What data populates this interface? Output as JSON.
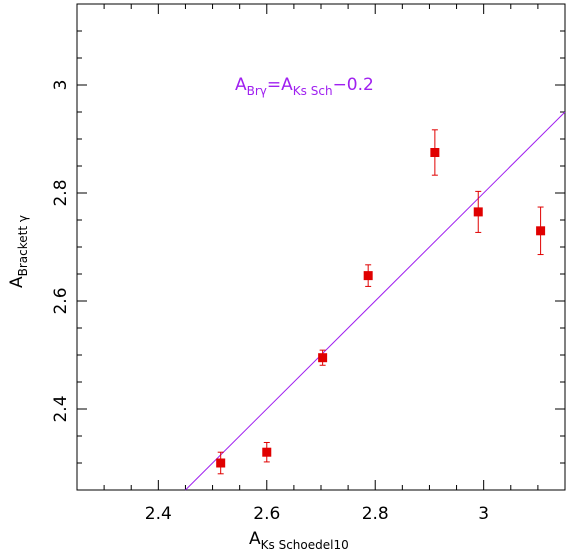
{
  "chart_data": {
    "type": "scatter",
    "xlabel": {
      "main": "A",
      "sub": "Ks Schoedel10"
    },
    "ylabel": {
      "main": "A",
      "sub": "Brackett γ"
    },
    "xlim": [
      2.25,
      3.15
    ],
    "ylim": [
      2.25,
      3.15
    ],
    "xticks": [
      2.4,
      2.6,
      2.8,
      3.0
    ],
    "xtick_labels": [
      "2.4",
      "2.6",
      "2.8",
      "3"
    ],
    "yticks": [
      2.4,
      2.6,
      2.8,
      3.0
    ],
    "ytick_labels": [
      "2.4",
      "2.6",
      "2.8",
      "3"
    ],
    "grid": false,
    "series": [
      {
        "marker": "square",
        "color": "#e00000",
        "points": [
          {
            "x": 2.515,
            "y": 2.3,
            "err": 0.02
          },
          {
            "x": 2.6,
            "y": 2.32,
            "err": 0.018
          },
          {
            "x": 2.703,
            "y": 2.495,
            "err": 0.014
          },
          {
            "x": 2.787,
            "y": 2.647,
            "err": 0.02
          },
          {
            "x": 2.91,
            "y": 2.875,
            "err": 0.042
          },
          {
            "x": 2.99,
            "y": 2.765,
            "err": 0.038
          },
          {
            "x": 3.105,
            "y": 2.73,
            "err": 0.044
          }
        ]
      }
    ],
    "fit_line": {
      "slope": 1.0,
      "offset": -0.2,
      "color": "#a020f0"
    },
    "annotation": {
      "color": "#a020f0",
      "part1": "A",
      "sub1": "Brγ",
      "eq": "=A",
      "sub2": "Ks Sch",
      "tail": "−0.2"
    }
  }
}
